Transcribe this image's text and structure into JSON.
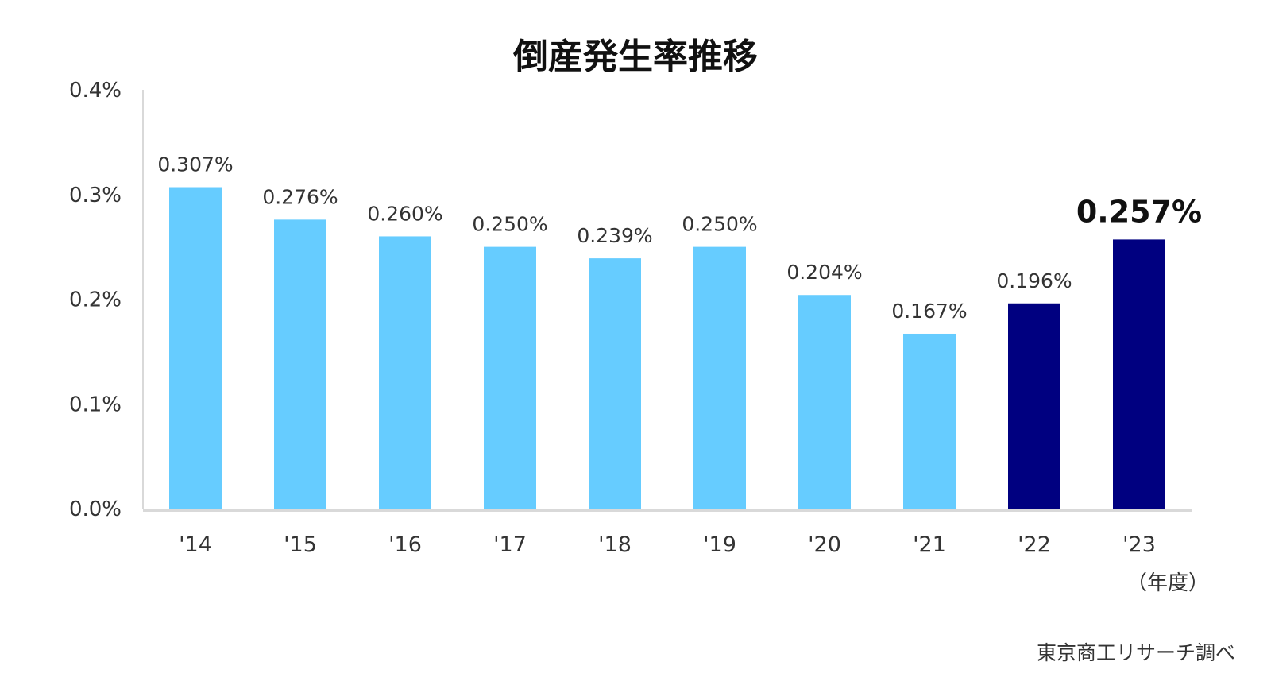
{
  "chart_data": {
    "type": "bar",
    "title": "倒産発生率推移",
    "categories": [
      "'14",
      "'15",
      "'16",
      "'17",
      "'18",
      "'19",
      "'20",
      "'21",
      "'22",
      "'23"
    ],
    "values": [
      0.307,
      0.276,
      0.26,
      0.25,
      0.239,
      0.25,
      0.204,
      0.167,
      0.196,
      0.257
    ],
    "value_labels": [
      "0.307%",
      "0.276%",
      "0.260%",
      "0.250%",
      "0.239%",
      "0.250%",
      "0.204%",
      "0.167%",
      "0.196%",
      "0.257%"
    ],
    "y_ticks": [
      "0.0%",
      "0.1%",
      "0.2%",
      "0.3%",
      "0.4%"
    ],
    "ylim": [
      0,
      0.4
    ],
    "x_unit_label": "（年度）",
    "source": "東京商工リサーチ調べ",
    "grid": false,
    "colors": {
      "default_bar": "#66CCFF",
      "highlight_bar": "#000080",
      "axis": "#D9D9D9"
    },
    "highlight_indices": [
      8,
      9
    ],
    "emphasized_label_index": 9
  }
}
